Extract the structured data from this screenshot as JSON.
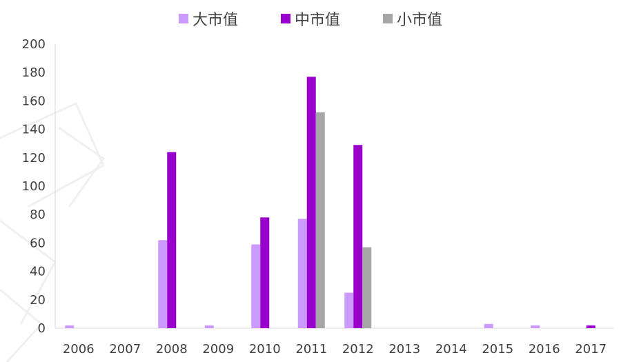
{
  "chart_data": {
    "type": "bar",
    "title": "",
    "xlabel": "",
    "ylabel": "",
    "categories": [
      "2006",
      "2007",
      "2008",
      "2009",
      "2010",
      "2011",
      "2012",
      "2013",
      "2014",
      "2015",
      "2016",
      "2017"
    ],
    "ylim": [
      0,
      200
    ],
    "yticks": [
      0,
      20,
      40,
      60,
      80,
      100,
      120,
      140,
      160,
      180,
      200
    ],
    "grid": false,
    "legend_position": "top-center",
    "series": [
      {
        "name": "大市值",
        "color": "#cc99ff",
        "values": [
          2,
          0,
          62,
          2,
          59,
          77,
          25,
          0,
          0,
          3,
          2,
          0
        ]
      },
      {
        "name": "中市值",
        "color": "#9900cc",
        "values": [
          0,
          0,
          124,
          0,
          78,
          177,
          129,
          0,
          0,
          0,
          0,
          2
        ]
      },
      {
        "name": "小市值",
        "color": "#a6a6a6",
        "values": [
          0,
          0,
          0,
          0,
          0,
          152,
          57,
          0,
          0,
          0,
          0,
          0
        ]
      }
    ]
  }
}
